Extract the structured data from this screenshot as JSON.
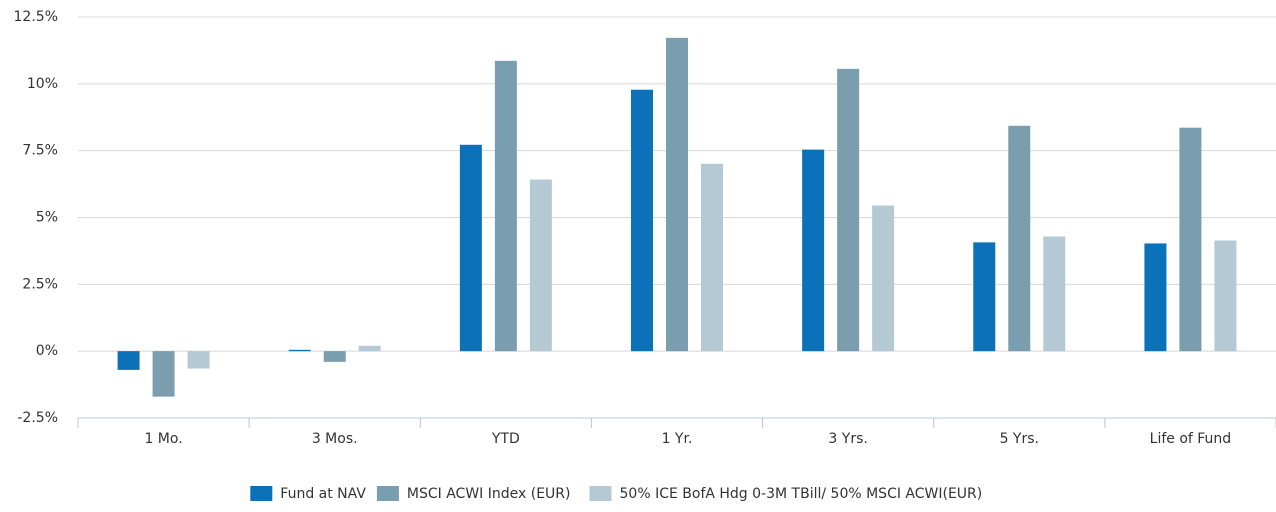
{
  "chart_data": {
    "type": "bar",
    "categories": [
      "1 Mo.",
      "3 Mos.",
      "YTD",
      "1 Yr.",
      "3 Yrs.",
      "5 Yrs.",
      "Life of Fund"
    ],
    "series": [
      {
        "name": "Fund at NAV",
        "color": "#0b72b9",
        "values": [
          -0.7,
          0.05,
          7.72,
          9.78,
          7.54,
          4.07,
          4.03
        ]
      },
      {
        "name": "MSCI ACWI Index (EUR)",
        "color": "#7a9db0",
        "values": [
          -1.7,
          -0.4,
          10.86,
          11.72,
          10.56,
          8.43,
          8.36
        ]
      },
      {
        "name": "50% ICE BofA Hdg 0-3M TBill/ 50% MSCI ACWI(EUR)",
        "color": "#b5c9d4",
        "values": [
          -0.65,
          0.2,
          6.42,
          7.01,
          5.45,
          4.29,
          4.14
        ]
      }
    ],
    "ylim": [
      -2.5,
      12.5
    ],
    "yticks": [
      {
        "value": -2.5,
        "label": "-2.5%"
      },
      {
        "value": 0,
        "label": "0%"
      },
      {
        "value": 2.5,
        "label": "2.5%"
      },
      {
        "value": 5,
        "label": "5%"
      },
      {
        "value": 7.5,
        "label": "7.5%"
      },
      {
        "value": 10,
        "label": "10%"
      },
      {
        "value": 12.5,
        "label": "12.5%"
      }
    ],
    "grid": true,
    "legend": "bottom"
  }
}
